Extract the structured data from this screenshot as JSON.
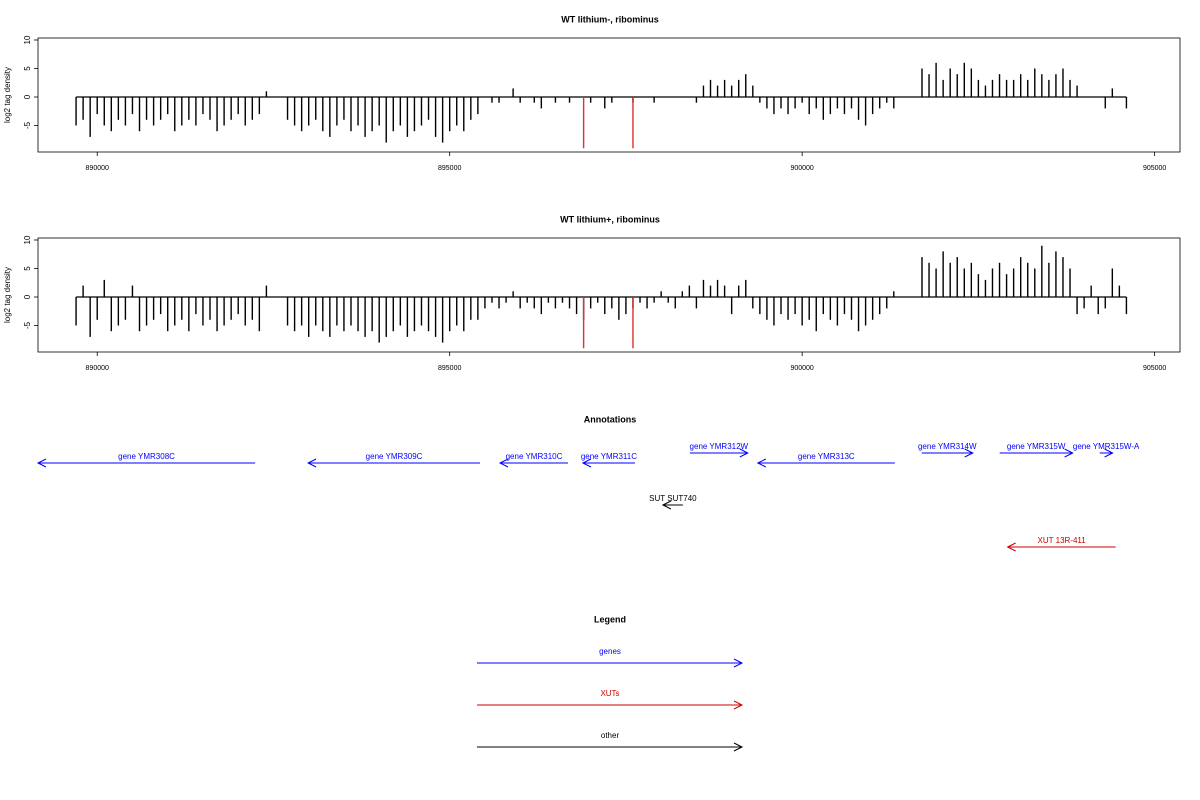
{
  "chart_data": [
    {
      "type": "bar",
      "title": "WT lithium-, ribominus",
      "ylabel": "log2 tag density",
      "xlim": [
        889160,
        905360
      ],
      "xticks": [
        890000,
        895000,
        900000,
        905000
      ],
      "ylim": [
        -9.65,
        10.35
      ],
      "yticks": [
        -5,
        0,
        5,
        10
      ],
      "series": [
        {
          "color": "#000000",
          "x": [
            889700,
            889800,
            889900,
            890000,
            890100,
            890200,
            890300,
            890400,
            890500,
            890600,
            890700,
            890800,
            890900,
            891000,
            891100,
            891200,
            891300,
            891400,
            891500,
            891600,
            891700,
            891800,
            891900,
            892000,
            892100,
            892200,
            892300,
            892400,
            892500,
            892600,
            892700,
            892800,
            892900,
            893000,
            893100,
            893200,
            893300,
            893400,
            893500,
            893600,
            893700,
            893800,
            893900,
            894000,
            894100,
            894200,
            894300,
            894400,
            894500,
            894600,
            894700,
            894800,
            894900,
            895000,
            895100,
            895200,
            895300,
            895400,
            895500,
            895600,
            895700,
            895800,
            895900,
            896000,
            896100,
            896200,
            896300,
            896400,
            896500,
            896600,
            896700,
            896800,
            896900,
            897000,
            897100,
            897200,
            897300,
            897400,
            897500,
            897600,
            897700,
            897800,
            897900,
            898000,
            898100,
            898200,
            898300,
            898400,
            898500,
            898600,
            898700,
            898800,
            898900,
            899000,
            899100,
            899200,
            899300,
            899400,
            899500,
            899600,
            899700,
            899800,
            899900,
            900000,
            900100,
            900200,
            900300,
            900400,
            900500,
            900600,
            900700,
            900800,
            900900,
            901000,
            901100,
            901200,
            901300,
            901400,
            901500,
            901600,
            901700,
            901800,
            901900,
            902000,
            902100,
            902200,
            902300,
            902400,
            902500,
            902600,
            902700,
            902800,
            902900,
            903000,
            903100,
            903200,
            903300,
            903400,
            903500,
            903600,
            903700,
            903800,
            903900,
            904000,
            904100,
            904200,
            904300,
            904400,
            904500,
            904600
          ],
          "values": [
            -5,
            -4,
            -7,
            -3,
            -5,
            -6,
            -4,
            -5,
            -3,
            -6,
            -4,
            -5,
            -4,
            -3,
            -6,
            -5,
            -4,
            -5,
            -3,
            -4,
            -6,
            -5,
            -4,
            -3,
            -5,
            -4,
            -3,
            1,
            0,
            0,
            -4,
            -5,
            -6,
            -5,
            -4,
            -6,
            -7,
            -5,
            -4,
            -6,
            -5,
            -7,
            -6,
            -5,
            -8,
            -6,
            -5,
            -7,
            -6,
            -5,
            -4,
            -7,
            -8,
            -6,
            -5,
            -6,
            -4,
            -3,
            0,
            -1,
            -1,
            0,
            1.5,
            -1,
            0,
            -1,
            -2,
            0,
            -1,
            0,
            -1,
            0,
            0,
            -1,
            0,
            -2,
            -1,
            0,
            0,
            -1,
            0,
            0,
            -1,
            0,
            0,
            0,
            0,
            0,
            -1,
            2,
            3,
            2,
            3,
            2,
            3,
            4,
            2,
            -1,
            -2,
            -3,
            -2,
            -3,
            -2,
            -1,
            -3,
            -2,
            -4,
            -3,
            -2,
            -3,
            -2,
            -4,
            -5,
            -3,
            -2,
            -1,
            -2,
            0,
            0,
            0,
            5,
            4,
            6,
            3,
            5,
            4,
            6,
            5,
            3,
            2,
            3,
            4,
            3,
            3,
            4,
            3,
            5,
            4,
            3,
            4,
            5,
            3,
            2,
            0,
            0,
            0,
            -2,
            1.5,
            0,
            -2
          ]
        },
        {
          "color": "#e03030",
          "x": [
            896900,
            897600
          ],
          "values": [
            -9,
            -9
          ]
        }
      ]
    },
    {
      "type": "bar",
      "title": "WT lithium+, ribominus",
      "ylabel": "log2 tag density",
      "xlim": [
        889160,
        905360
      ],
      "xticks": [
        890000,
        895000,
        900000,
        905000
      ],
      "ylim": [
        -9.65,
        10.35
      ],
      "yticks": [
        -5,
        0,
        5,
        10
      ],
      "series": [
        {
          "color": "#000000",
          "x": [
            889700,
            889800,
            889900,
            890000,
            890100,
            890200,
            890300,
            890400,
            890500,
            890600,
            890700,
            890800,
            890900,
            891000,
            891100,
            891200,
            891300,
            891400,
            891500,
            891600,
            891700,
            891800,
            891900,
            892000,
            892100,
            892200,
            892300,
            892400,
            892500,
            892600,
            892700,
            892800,
            892900,
            893000,
            893100,
            893200,
            893300,
            893400,
            893500,
            893600,
            893700,
            893800,
            893900,
            894000,
            894100,
            894200,
            894300,
            894400,
            894500,
            894600,
            894700,
            894800,
            894900,
            895000,
            895100,
            895200,
            895300,
            895400,
            895500,
            895600,
            895700,
            895800,
            895900,
            896000,
            896100,
            896200,
            896300,
            896400,
            896500,
            896600,
            896700,
            896800,
            896900,
            897000,
            897100,
            897200,
            897300,
            897400,
            897500,
            897600,
            897700,
            897800,
            897900,
            898000,
            898100,
            898200,
            898300,
            898400,
            898500,
            898600,
            898700,
            898800,
            898900,
            899000,
            899100,
            899200,
            899300,
            899400,
            899500,
            899600,
            899700,
            899800,
            899900,
            900000,
            900100,
            900200,
            900300,
            900400,
            900500,
            900600,
            900700,
            900800,
            900900,
            901000,
            901100,
            901200,
            901300,
            901400,
            901500,
            901600,
            901700,
            901800,
            901900,
            902000,
            902100,
            902200,
            902300,
            902400,
            902500,
            902600,
            902700,
            902800,
            902900,
            903000,
            903100,
            903200,
            903300,
            903400,
            903500,
            903600,
            903700,
            903800,
            903900,
            904000,
            904100,
            904200,
            904300,
            904400,
            904500,
            904600
          ],
          "values": [
            -5,
            2,
            -7,
            -4,
            3,
            -6,
            -5,
            -4,
            2,
            -6,
            -5,
            -4,
            -3,
            -6,
            -5,
            -4,
            -6,
            -3,
            -5,
            -4,
            -6,
            -5,
            -4,
            -3,
            -5,
            -4,
            -6,
            2,
            0,
            0,
            -5,
            -6,
            -5,
            -7,
            -5,
            -6,
            -7,
            -5,
            -6,
            -5,
            -6,
            -7,
            -6,
            -8,
            -7,
            -6,
            -5,
            -7,
            -6,
            -5,
            -6,
            -7,
            -8,
            -6,
            -5,
            -6,
            -4,
            -4,
            -2,
            -1,
            -2,
            -1,
            1,
            -2,
            -1,
            -2,
            -3,
            -1,
            -2,
            -1,
            -2,
            -3,
            -4,
            -2,
            -1,
            -3,
            -2,
            -4,
            -3,
            -2,
            -1,
            -2,
            -1,
            1,
            -1,
            -2,
            1,
            2,
            -2,
            3,
            2,
            3,
            2,
            -3,
            2,
            3,
            -2,
            -3,
            -4,
            -5,
            -3,
            -4,
            -3,
            -5,
            -4,
            -6,
            -3,
            -4,
            -5,
            -3,
            -4,
            -6,
            -5,
            -4,
            -3,
            -2,
            1,
            0,
            0,
            0,
            7,
            6,
            5,
            8,
            6,
            7,
            5,
            6,
            4,
            3,
            5,
            6,
            4,
            5,
            7,
            6,
            5,
            9,
            6,
            8,
            7,
            5,
            -3,
            -2,
            2,
            -3,
            -2,
            5,
            2,
            -3
          ]
        },
        {
          "color": "#e03030",
          "x": [
            896900,
            897600
          ],
          "values": [
            -9,
            -9
          ]
        }
      ]
    }
  ],
  "annotations": {
    "title": "Annotations",
    "features": [
      {
        "label": "gene YMR308C",
        "start": 892240,
        "end": 889160,
        "color": "#0000ff"
      },
      {
        "label": "gene YMR309C",
        "start": 895430,
        "end": 892992,
        "color": "#0000ff"
      },
      {
        "label": "gene YMR310C",
        "start": 896678,
        "end": 895714,
        "color": "#0000ff"
      },
      {
        "label": "gene YMR311C",
        "start": 897628,
        "end": 896890,
        "color": "#0000ff"
      },
      {
        "label": "gene YMR312W",
        "start": 898407,
        "end": 899229,
        "color": "#0000ff"
      },
      {
        "label": "gene YMR313C",
        "start": 901314,
        "end": 899371,
        "color": "#0000ff"
      },
      {
        "label": "gene YMR314W",
        "start": 901697,
        "end": 902420,
        "color": "#0000ff"
      },
      {
        "label": "gene YMR315W",
        "start": 902802,
        "end": 903837,
        "color": "#0000ff"
      },
      {
        "label": "gene YMR315W-A",
        "start": 904220,
        "end": 904404,
        "color": "#0000ff"
      },
      {
        "label": "SUT SUT740",
        "start": 898308,
        "end": 898025,
        "color": "#000000"
      },
      {
        "label": "XUT 13R-411",
        "start": 904447,
        "end": 902915,
        "color": "#cc0000"
      }
    ]
  },
  "legend": {
    "title": "Legend",
    "items": [
      {
        "label": "genes",
        "color": "#0000ff"
      },
      {
        "label": "XUTs",
        "color": "#cc0000"
      },
      {
        "label": "other",
        "color": "#000000"
      }
    ]
  }
}
